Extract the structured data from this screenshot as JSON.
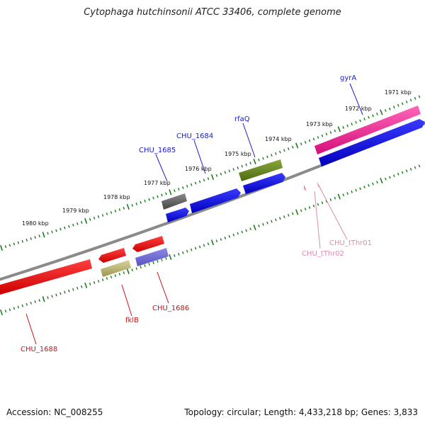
{
  "title": "Cytophaga hutchinsonii ATCC 33406, complete genome",
  "accession": "Accession: NC_008255",
  "topology": "Topology: circular; Length: 4,433,218 bp; Genes: 3,833",
  "colors": {
    "backbone": "#7a7a7a",
    "ruler": "#1e7a1e",
    "label_blue": "#1a1acc",
    "label_red": "#cc1111",
    "label_pink": "#e08ab0"
  },
  "kbp_labels": [
    "1971 kbp",
    "1972 kbp",
    "1973 kbp",
    "1974 kbp",
    "1975 kbp",
    "1976 kbp",
    "1977 kbp",
    "1978 kbp",
    "1979 kbp",
    "1980 kbp"
  ],
  "gene_labels": {
    "gyrA": "gyrA",
    "rfaQ": "rfaQ",
    "chu1684": "CHU_1684",
    "chu1685": "CHU_1685",
    "chuThr01": "CHU_tThr01",
    "chuThr02": "CHU_tThr02",
    "fklB": "fklB",
    "chu1686": "CHU_1686",
    "chu1688": "CHU_1688"
  }
}
